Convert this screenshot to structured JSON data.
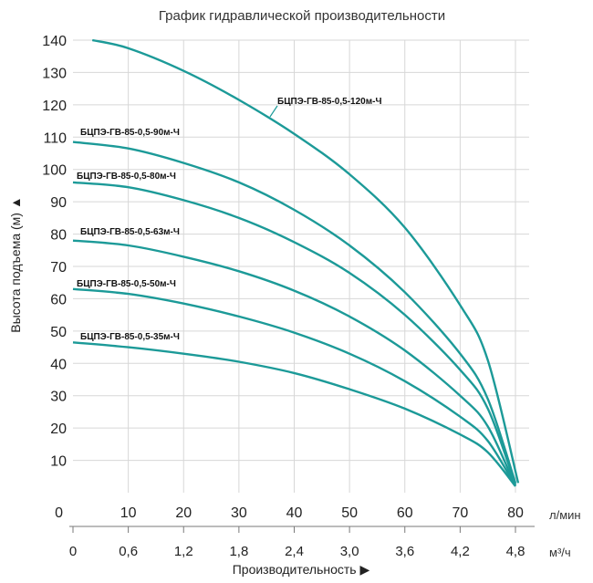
{
  "chart_data": {
    "type": "line",
    "title": "График гидравлической производительности",
    "ylabel": "Высота подъема (м) ▲",
    "xlabel": "Производительность ▶",
    "xunit_primary": "л/мин",
    "xunit_secondary": "м³/ч",
    "x_origin_label": "0",
    "ylim": [
      0,
      140
    ],
    "xlim": [
      0,
      80
    ],
    "yticks": [
      10,
      20,
      30,
      40,
      50,
      60,
      70,
      80,
      90,
      100,
      110,
      120,
      130,
      140
    ],
    "xticks": [
      10,
      20,
      30,
      40,
      50,
      60,
      70,
      80
    ],
    "xticks_secondary": [
      {
        "value": 0,
        "label": "0"
      },
      {
        "value": 10,
        "label": "0,6"
      },
      {
        "value": 20,
        "label": "1,2"
      },
      {
        "value": 30,
        "label": "1,8"
      },
      {
        "value": 40,
        "label": "2,4"
      },
      {
        "value": 50,
        "label": "3,0"
      },
      {
        "value": 60,
        "label": "3,6"
      },
      {
        "value": 70,
        "label": "4,2"
      },
      {
        "value": 80,
        "label": "4,8"
      }
    ],
    "grid": true,
    "series": [
      {
        "name": "БЦПЭ-ГВ-85-0,5-120м-Ч",
        "x": [
          3.5,
          10,
          20,
          30,
          40,
          50,
          60,
          70,
          75,
          80.5
        ],
        "y": [
          140,
          137.5,
          130.5,
          121.5,
          111,
          98.5,
          82,
          58,
          41,
          3
        ]
      },
      {
        "name": "БЦПЭ-ГВ-85-0,5-90м-Ч",
        "x": [
          0,
          10,
          20,
          30,
          40,
          50,
          60,
          70,
          75,
          80
        ],
        "y": [
          108.5,
          106.5,
          102,
          96,
          87.5,
          76.5,
          62,
          43,
          29,
          3
        ]
      },
      {
        "name": "БЦПЭ-ГВ-85-0,5-80м-Ч",
        "x": [
          0,
          10,
          20,
          30,
          40,
          50,
          60,
          70,
          75,
          80
        ],
        "y": [
          96,
          94.5,
          90.5,
          85,
          77.5,
          68,
          55,
          38,
          26,
          2.5
        ]
      },
      {
        "name": "БЦПЭ-ГВ-85-0,5-63м-Ч",
        "x": [
          0,
          10,
          20,
          30,
          40,
          50,
          60,
          70,
          75,
          80
        ],
        "y": [
          78,
          76.5,
          73,
          68.5,
          62.5,
          54.5,
          44,
          30,
          20.5,
          2
        ]
      },
      {
        "name": "БЦПЭ-ГВ-85-0,5-50м-Ч",
        "x": [
          0,
          10,
          20,
          30,
          40,
          50,
          60,
          70,
          75,
          80
        ],
        "y": [
          63,
          61.5,
          58.5,
          54.5,
          49.5,
          43,
          34.5,
          23.5,
          16,
          2
        ]
      },
      {
        "name": "БЦПЭ-ГВ-85-0,5-35м-Ч",
        "x": [
          0,
          10,
          20,
          30,
          40,
          50,
          60,
          70,
          75,
          80
        ],
        "y": [
          46.5,
          45,
          43,
          40.5,
          37,
          32,
          26,
          18,
          12.5,
          2
        ]
      }
    ]
  }
}
